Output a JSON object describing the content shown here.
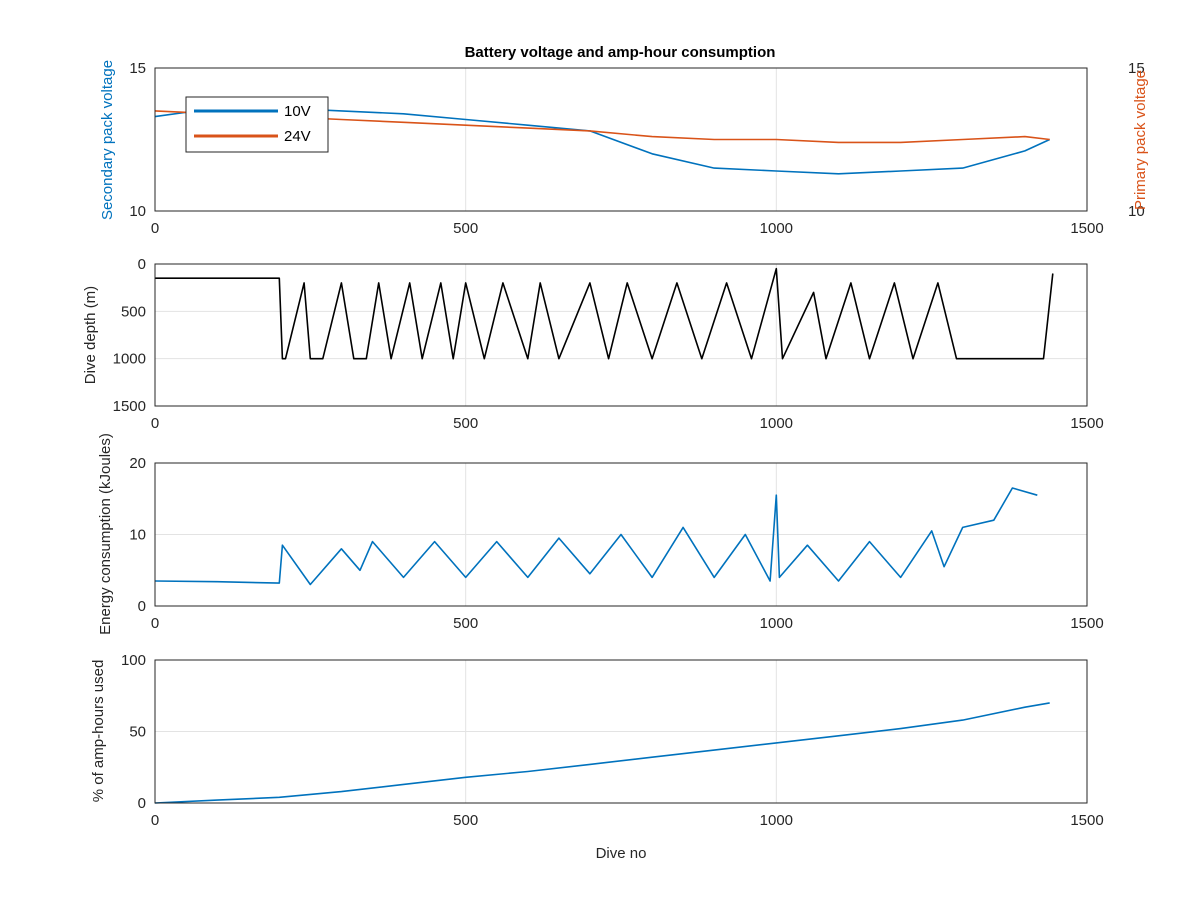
{
  "chart_data": [
    {
      "type": "line",
      "title": "Battery voltage and amp-hour consumption",
      "xlabel": "",
      "ylabel": "Secondary pack voltage",
      "ylabel_right": "Primary pack voltage",
      "xlim": [
        0,
        1500
      ],
      "ylim": [
        10,
        15
      ],
      "ylim_right": [
        10,
        15
      ],
      "xticks": [
        "0",
        "500",
        "1000",
        "1500"
      ],
      "yticks": [
        "10",
        "15"
      ],
      "yticks_right": [
        "10",
        "15"
      ],
      "grid": true,
      "legend": "top-left",
      "colors": {
        "left_axis": "#0072BD",
        "right_axis": "#D95319"
      },
      "series": [
        {
          "name": "10V",
          "color": "#0072BD",
          "axis": "left",
          "x": [
            0,
            100,
            200,
            300,
            400,
            500,
            600,
            700,
            800,
            900,
            1000,
            1100,
            1200,
            1300,
            1400,
            1440
          ],
          "values": [
            13.3,
            13.6,
            13.6,
            13.5,
            13.4,
            13.2,
            13.0,
            12.8,
            12.0,
            11.5,
            11.4,
            11.3,
            11.4,
            11.5,
            12.1,
            12.5
          ]
        },
        {
          "name": "24V",
          "color": "#D95319",
          "axis": "right",
          "x": [
            0,
            100,
            200,
            300,
            400,
            500,
            600,
            700,
            800,
            900,
            1000,
            1100,
            1200,
            1300,
            1400,
            1440
          ],
          "values": [
            13.5,
            13.4,
            13.3,
            13.2,
            13.1,
            13.0,
            12.9,
            12.8,
            12.6,
            12.5,
            12.5,
            12.4,
            12.4,
            12.5,
            12.6,
            12.5
          ]
        }
      ]
    },
    {
      "type": "line",
      "title": "",
      "xlabel": "",
      "ylabel": "Dive depth (m)",
      "xlim": [
        0,
        1500
      ],
      "ylim": [
        1500,
        0
      ],
      "xticks": [
        "0",
        "500",
        "1000",
        "1500"
      ],
      "yticks": [
        "0",
        "500",
        "1000",
        "1500"
      ],
      "grid": true,
      "colors": {
        "series": "#000000"
      },
      "series": [
        {
          "x": [
            0,
            200,
            205,
            210,
            240,
            250,
            270,
            300,
            320,
            340,
            360,
            380,
            410,
            430,
            460,
            480,
            500,
            530,
            560,
            600,
            620,
            650,
            700,
            730,
            760,
            800,
            840,
            880,
            920,
            960,
            1000,
            1010,
            1060,
            1080,
            1120,
            1150,
            1190,
            1220,
            1260,
            1290,
            1430,
            1445
          ],
          "values": [
            150,
            150,
            1000,
            1000,
            200,
            1000,
            1000,
            200,
            1000,
            1000,
            200,
            1000,
            200,
            1000,
            200,
            1000,
            200,
            1000,
            200,
            1000,
            200,
            1000,
            200,
            1000,
            200,
            1000,
            200,
            1000,
            200,
            1000,
            50,
            1000,
            300,
            1000,
            200,
            1000,
            200,
            1000,
            200,
            1000,
            1000,
            100
          ]
        }
      ]
    },
    {
      "type": "line",
      "title": "",
      "xlabel": "",
      "ylabel": "Energy consumption (kJoules)",
      "xlim": [
        0,
        1500
      ],
      "ylim": [
        0,
        20
      ],
      "xticks": [
        "0",
        "500",
        "1000",
        "1500"
      ],
      "yticks": [
        "0",
        "10",
        "20"
      ],
      "grid": true,
      "colors": {
        "series": "#0072BD"
      },
      "series": [
        {
          "x": [
            0,
            100,
            200,
            205,
            250,
            300,
            330,
            350,
            400,
            450,
            500,
            550,
            600,
            650,
            700,
            750,
            800,
            850,
            900,
            950,
            990,
            1000,
            1005,
            1050,
            1100,
            1150,
            1200,
            1250,
            1270,
            1300,
            1350,
            1380,
            1420
          ],
          "values": [
            3.5,
            3.4,
            3.2,
            8.5,
            3.0,
            8.0,
            5.0,
            9.0,
            4.0,
            9.0,
            4.0,
            9.0,
            4.0,
            9.5,
            4.5,
            10.0,
            4.0,
            11.0,
            4.0,
            10.0,
            3.5,
            15.5,
            4.0,
            8.5,
            3.5,
            9.0,
            4.0,
            10.5,
            5.5,
            11.0,
            12.0,
            16.5,
            15.5
          ]
        }
      ]
    },
    {
      "type": "line",
      "title": "",
      "xlabel": "Dive no",
      "ylabel": "% of amp-hours used",
      "xlim": [
        0,
        1500
      ],
      "ylim": [
        0,
        100
      ],
      "xticks": [
        "0",
        "500",
        "1000",
        "1500"
      ],
      "yticks": [
        "0",
        "50",
        "100"
      ],
      "grid": true,
      "colors": {
        "series": "#0072BD"
      },
      "series": [
        {
          "x": [
            0,
            100,
            200,
            300,
            400,
            500,
            600,
            700,
            800,
            900,
            1000,
            1100,
            1200,
            1300,
            1400,
            1440
          ],
          "values": [
            0,
            2,
            4,
            8,
            13,
            18,
            22,
            27,
            32,
            37,
            42,
            47,
            52,
            58,
            67,
            70
          ]
        }
      ]
    }
  ]
}
